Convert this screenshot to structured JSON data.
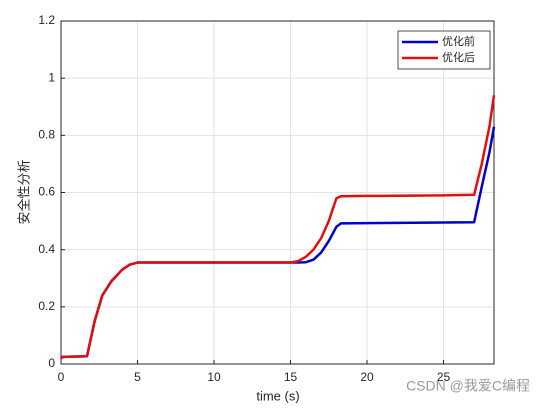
{
  "chart_data": {
    "type": "line",
    "x_label": "time (s)",
    "y_label": "安全性分析",
    "x": [
      0,
      0.1,
      1.7,
      2.2,
      2.7,
      3.3,
      4,
      4.5,
      5,
      10,
      15,
      15.5,
      16,
      16.5,
      17,
      17.5,
      18,
      18.3,
      20,
      25,
      27,
      27.5,
      28,
      28.3
    ],
    "series": [
      {
        "name": "优化前",
        "color": "#0000cc",
        "values": [
          0.02,
          0.025,
          0.027,
          0.15,
          0.24,
          0.29,
          0.33,
          0.348,
          0.355,
          0.355,
          0.355,
          0.355,
          0.356,
          0.365,
          0.39,
          0.43,
          0.48,
          0.492,
          0.493,
          0.495,
          0.496,
          0.62,
          0.74,
          0.83
        ]
      },
      {
        "name": "优化后",
        "color": "#e01010",
        "values": [
          0.02,
          0.025,
          0.027,
          0.15,
          0.24,
          0.29,
          0.33,
          0.348,
          0.355,
          0.355,
          0.355,
          0.36,
          0.375,
          0.4,
          0.44,
          0.5,
          0.58,
          0.587,
          0.588,
          0.59,
          0.592,
          0.7,
          0.83,
          0.94
        ]
      }
    ],
    "xlim": [
      0,
      28.3
    ],
    "xticks": [
      0,
      5,
      10,
      15,
      20,
      25
    ],
    "ylim": [
      0,
      1.2
    ],
    "yticks": [
      0,
      0.2,
      0.4,
      0.6,
      0.8,
      1,
      1.2
    ],
    "grid": true,
    "legend": "top-right"
  },
  "watermark": "CSDN @我爱C编程"
}
